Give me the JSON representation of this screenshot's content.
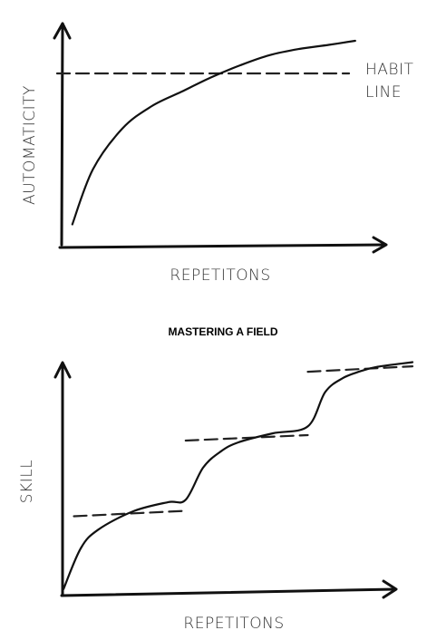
{
  "chart_data": [
    {
      "type": "line",
      "title": "",
      "xlabel": "REPETITONS",
      "ylabel": "AUTOMATICITY",
      "grid": false,
      "xlim": [
        0,
        10
      ],
      "ylim": [
        0,
        10
      ],
      "series": [
        {
          "x": [
            0.3,
            1,
            2,
            3,
            4,
            5,
            6,
            7,
            8,
            9,
            9.9
          ],
          "values": [
            1,
            3.7,
            5.7,
            6.8,
            7.5,
            8.2,
            8.8,
            9.3,
            9.6,
            9.8,
            10
          ]
        }
      ],
      "reference_line": {
        "label": [
          "HABIT",
          "LINE"
        ],
        "value": 8.4
      }
    },
    {
      "type": "line",
      "title": "MASTERING A FIELD",
      "xlabel": "REPETITONS",
      "ylabel": "SKILL",
      "grid": false,
      "xlim": [
        0,
        10
      ],
      "ylim": [
        0,
        10
      ],
      "series": [
        {
          "x": [
            0,
            0.5,
            1,
            2,
            3,
            3.5,
            4,
            4.5,
            5,
            6,
            7,
            7.5,
            8,
            8.5,
            9,
            10
          ],
          "values": [
            0,
            1.8,
            2.6,
            3.4,
            3.8,
            3.9,
            5.3,
            6,
            6.4,
            6.8,
            7.1,
            8.6,
            9.2,
            9.5,
            9.7,
            9.9
          ]
        }
      ],
      "plateau_lines": [
        {
          "x_start": 0.3,
          "x_end": 3.5,
          "value": 3.3
        },
        {
          "x_start": 3.5,
          "x_end": 7,
          "value": 6.6
        },
        {
          "x_start": 7,
          "x_end": 10,
          "value": 9.6
        }
      ]
    }
  ]
}
